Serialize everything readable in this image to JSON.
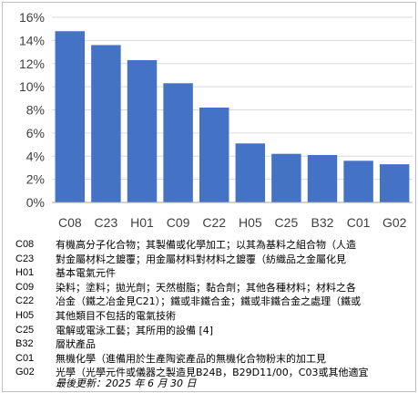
{
  "chart_data": {
    "type": "bar",
    "categories": [
      "C08",
      "C23",
      "H01",
      "C09",
      "C22",
      "H05",
      "C25",
      "B32",
      "C01",
      "G02"
    ],
    "values": [
      14.8,
      13.6,
      12.3,
      10.3,
      8.2,
      5.1,
      4.2,
      4.1,
      3.6,
      3.3
    ],
    "ylim": [
      0,
      16
    ],
    "yticks": [
      "0%",
      "2%",
      "4%",
      "6%",
      "8%",
      "10%",
      "12%",
      "14%",
      "16%"
    ],
    "grid": true,
    "bar_color": "#4472c4",
    "grid_color": "#d9d9d9"
  },
  "legend": [
    {
      "code": "C08",
      "desc": "有機高分子化合物；其製備或化學加工；以其為基料之組合物（人造"
    },
    {
      "code": "C23",
      "desc": "對金屬材料之鍍覆；用金屬材料對材料之鍍覆（紡織品之金屬化見"
    },
    {
      "code": "H01",
      "desc": "基本電氣元件"
    },
    {
      "code": "C09",
      "desc": "染料；塗料；拋光劑；天然樹脂；黏合劑；其他各種材料；材料之各"
    },
    {
      "code": "C22",
      "desc": "冶金（鐵之冶金見C21）；鐵或非鐵合金；鐵或非鐵合金之處理（鐵或"
    },
    {
      "code": "H05",
      "desc": "其他類目不包括的電氣技術"
    },
    {
      "code": "C25",
      "desc": "電解或電泳工藝；其所用的設備 [4]"
    },
    {
      "code": "B32",
      "desc": "層狀產品"
    },
    {
      "code": "C01",
      "desc": "無機化學（進備用於生產陶瓷產品的無機化合物粉末的加工見"
    },
    {
      "code": "G02",
      "desc": "光學（光學元件或儀器之製造見B24B，B29D11/00，C03或其他適宜"
    }
  ],
  "footnote": "最後更新：2025 年 6 月 30 日"
}
